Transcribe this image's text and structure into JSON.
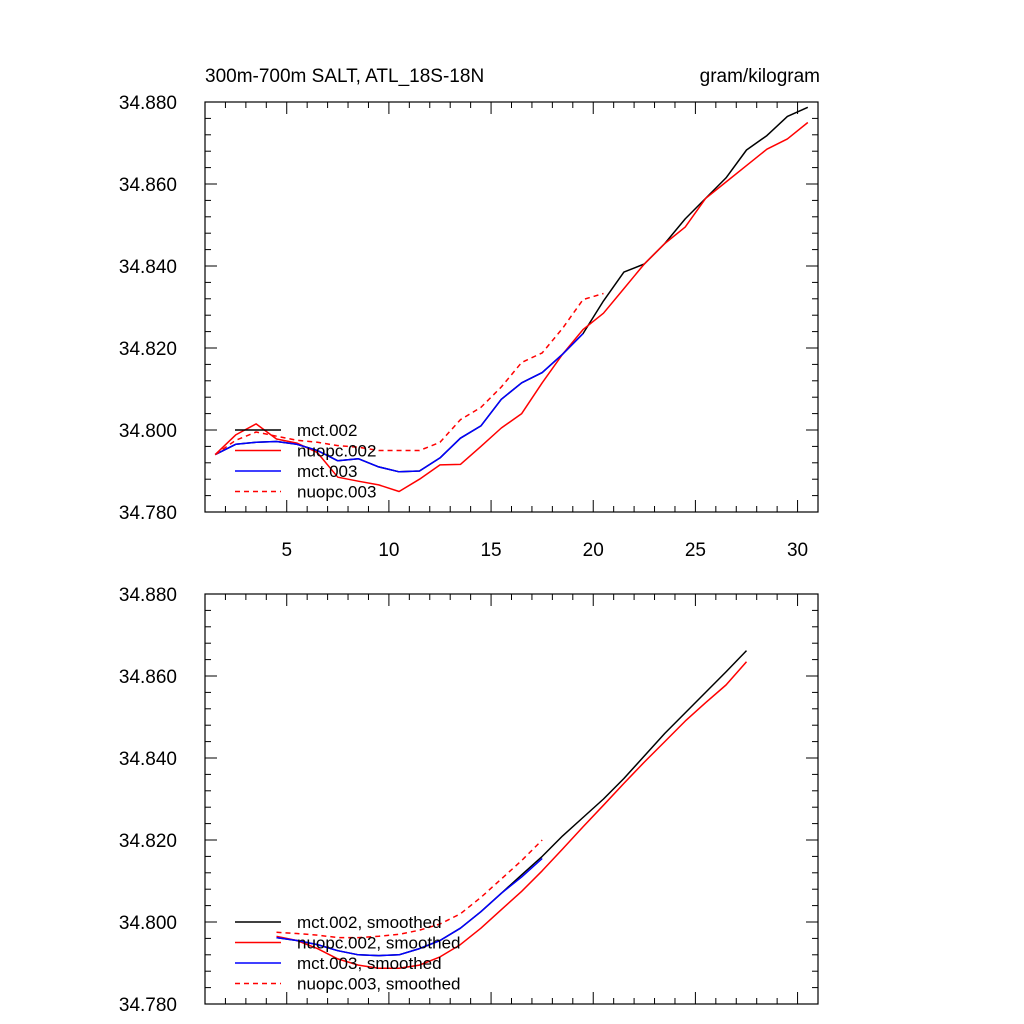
{
  "chart_data": [
    {
      "type": "line",
      "title": "300m-700m SALT, ATL_18S-18N",
      "units_label": "gram/kilogram",
      "xlabel": "",
      "ylabel": "",
      "xlim": [
        1,
        31
      ],
      "ylim": [
        34.78,
        34.88
      ],
      "xticks": [
        5,
        10,
        15,
        20,
        25,
        30
      ],
      "yticks": [
        34.78,
        34.8,
        34.82,
        34.84,
        34.86,
        34.88
      ],
      "ytick_labels": [
        "34.780",
        "34.800",
        "34.820",
        "34.840",
        "34.860",
        "34.880"
      ],
      "legend_position": "bottom-left",
      "series": [
        {
          "name": "mct.002",
          "color": "#000000",
          "dash": "solid",
          "x": [
            1.5,
            2.5,
            3.5,
            4.5,
            5.5,
            6.5,
            7.5,
            8.5,
            9.5,
            10.5,
            11.5,
            12.5,
            13.5,
            14.5,
            15.5,
            16.5,
            17.5,
            18.5,
            19.5,
            20.5,
            21.5,
            22.5,
            23.5,
            24.5,
            25.5,
            26.5,
            27.5,
            28.5,
            29.5,
            30.5
          ],
          "values": [
            34.794,
            34.7965,
            34.797,
            34.7972,
            34.7965,
            34.795,
            34.7925,
            34.793,
            34.791,
            34.7898,
            34.79,
            34.7932,
            34.798,
            34.801,
            34.8075,
            34.8115,
            34.814,
            34.8185,
            34.8235,
            34.8315,
            34.8385,
            34.8405,
            34.8455,
            34.8515,
            34.8565,
            34.8615,
            34.8683,
            34.8718,
            34.8765,
            34.8787
          ]
        },
        {
          "name": "nuopc.002",
          "color": "#ff0000",
          "dash": "solid",
          "x": [
            1.5,
            2.5,
            3.5,
            4.5,
            5.5,
            6.5,
            7.5,
            8.5,
            9.5,
            10.5,
            11.5,
            12.5,
            13.5,
            14.5,
            15.5,
            16.5,
            17.5,
            18.5,
            19.5,
            20.5,
            21.5,
            22.5,
            23.5,
            24.5,
            25.5,
            26.5,
            27.5,
            28.5,
            29.5,
            30.5
          ],
          "values": [
            34.794,
            34.7988,
            34.8015,
            34.7978,
            34.7968,
            34.7945,
            34.7885,
            34.7875,
            34.7866,
            34.785,
            34.788,
            34.7915,
            34.7916,
            34.796,
            34.8005,
            34.804,
            34.8115,
            34.8185,
            34.8245,
            34.8285,
            34.8345,
            34.8405,
            34.8455,
            34.8495,
            34.8565,
            34.8605,
            34.8645,
            34.8685,
            34.871,
            34.875
          ]
        },
        {
          "name": "mct.003",
          "color": "#0000ff",
          "dash": "solid",
          "x": [
            1.5,
            2.5,
            3.5,
            4.5,
            5.5,
            6.5,
            7.5,
            8.5,
            9.5,
            10.5,
            11.5,
            12.5,
            13.5,
            14.5,
            15.5,
            16.5,
            17.5,
            18.5,
            19.5
          ],
          "values": [
            34.794,
            34.7965,
            34.797,
            34.7972,
            34.7965,
            34.795,
            34.7925,
            34.793,
            34.791,
            34.7898,
            34.79,
            34.7932,
            34.798,
            34.801,
            34.8075,
            34.8115,
            34.814,
            34.8185,
            34.8235
          ]
        },
        {
          "name": "nuopc.003",
          "color": "#ff0000",
          "dash": "dashed",
          "x": [
            1.5,
            2.5,
            3.5,
            4.5,
            5.5,
            6.5,
            7.5,
            8.5,
            9.5,
            10.5,
            11.5,
            12.5,
            13.5,
            14.5,
            15.5,
            16.5,
            17.5,
            18.5,
            19.5,
            20.5
          ],
          "values": [
            34.794,
            34.7975,
            34.7995,
            34.7985,
            34.7975,
            34.797,
            34.7962,
            34.7958,
            34.795,
            34.795,
            34.795,
            34.797,
            34.8025,
            34.8055,
            34.8105,
            34.8165,
            34.8188,
            34.8248,
            34.8318,
            34.8333
          ]
        }
      ]
    },
    {
      "type": "line",
      "title": "",
      "xlabel": "",
      "ylabel": "",
      "xlim": [
        1,
        31
      ],
      "ylim": [
        34.78,
        34.88
      ],
      "xticks": [
        5,
        10,
        15,
        20,
        25,
        30
      ],
      "yticks": [
        34.78,
        34.8,
        34.82,
        34.84,
        34.86,
        34.88
      ],
      "ytick_labels": [
        "34.780",
        "34.800",
        "34.820",
        "34.840",
        "34.860",
        "34.880"
      ],
      "legend_position": "bottom-left",
      "series": [
        {
          "name": "mct.002, smoothed",
          "color": "#000000",
          "dash": "solid",
          "x": [
            4.5,
            5.5,
            6.5,
            7.5,
            8.5,
            9.5,
            10.5,
            11.5,
            12.5,
            13.5,
            14.5,
            15.5,
            16.5,
            17.5,
            18.5,
            19.5,
            20.5,
            21.5,
            22.5,
            23.5,
            24.5,
            25.5,
            26.5,
            27.5
          ],
          "values": [
            34.7962,
            34.7955,
            34.7945,
            34.793,
            34.792,
            34.7918,
            34.792,
            34.7935,
            34.7955,
            34.7985,
            34.8025,
            34.807,
            34.8115,
            34.816,
            34.821,
            34.8255,
            34.83,
            34.835,
            34.8405,
            34.846,
            34.851,
            34.856,
            34.861,
            34.8662
          ]
        },
        {
          "name": "nuopc.002, smoothed",
          "color": "#ff0000",
          "dash": "solid",
          "x": [
            4.5,
            5.5,
            6.5,
            7.5,
            8.5,
            9.5,
            10.5,
            11.5,
            12.5,
            13.5,
            14.5,
            15.5,
            16.5,
            17.5,
            18.5,
            19.5,
            20.5,
            21.5,
            22.5,
            23.5,
            24.5,
            25.5,
            26.5,
            27.5
          ],
          "values": [
            34.7965,
            34.7955,
            34.7935,
            34.791,
            34.7895,
            34.7887,
            34.7887,
            34.7895,
            34.7915,
            34.7945,
            34.7985,
            34.803,
            34.8075,
            34.8125,
            34.8178,
            34.8232,
            34.8285,
            34.8338,
            34.839,
            34.844,
            34.849,
            34.8535,
            34.8578,
            34.8635
          ]
        },
        {
          "name": "mct.003, smoothed",
          "color": "#0000ff",
          "dash": "solid",
          "x": [
            4.5,
            5.5,
            6.5,
            7.5,
            8.5,
            9.5,
            10.5,
            11.5,
            12.5,
            13.5,
            14.5,
            15.5,
            16.5,
            17.5
          ],
          "values": [
            34.7962,
            34.7955,
            34.7945,
            34.793,
            34.792,
            34.7918,
            34.792,
            34.7935,
            34.7955,
            34.7985,
            34.8025,
            34.807,
            34.811,
            34.8155
          ]
        },
        {
          "name": "nuopc.003, smoothed",
          "color": "#ff0000",
          "dash": "dashed",
          "x": [
            4.5,
            5.5,
            6.5,
            7.5,
            8.5,
            9.5,
            10.5,
            11.5,
            12.5,
            13.5,
            14.5,
            15.5,
            16.5,
            17.5
          ],
          "values": [
            34.7975,
            34.7972,
            34.7968,
            34.7962,
            34.7962,
            34.7965,
            34.797,
            34.798,
            34.7995,
            34.802,
            34.806,
            34.8105,
            34.815,
            34.82
          ]
        }
      ]
    }
  ]
}
